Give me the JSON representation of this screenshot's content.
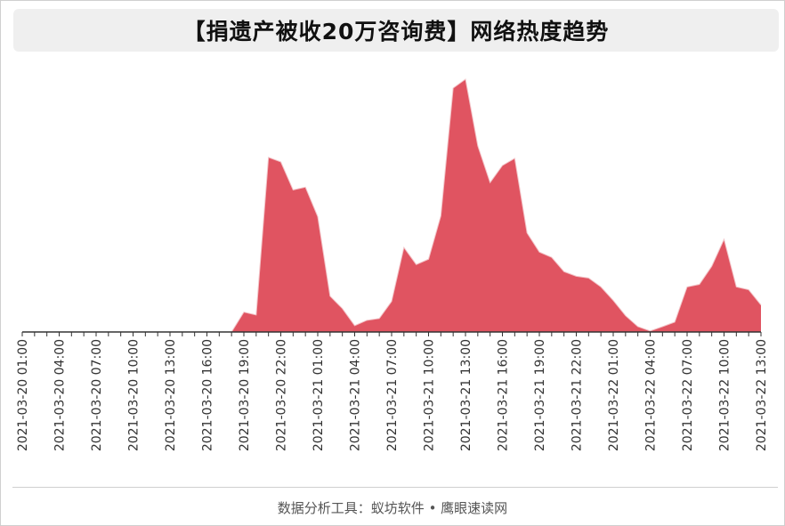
{
  "chart_data": {
    "type": "area",
    "title": "【捐遗产被收20万咨询费】网络热度趋势",
    "xlabel": "",
    "ylabel": "",
    "color": "#e05461",
    "y_axis_visible": false,
    "grid": false,
    "legend": "none",
    "ylim": [
      0,
      100
    ],
    "x_tick_labels": [
      "2021-03-20 01:00",
      "2021-03-20 04:00",
      "2021-03-20 07:00",
      "2021-03-20 10:00",
      "2021-03-20 13:00",
      "2021-03-20 16:00",
      "2021-03-20 19:00",
      "2021-03-20 22:00",
      "2021-03-21 01:00",
      "2021-03-21 04:00",
      "2021-03-21 07:00",
      "2021-03-21 10:00",
      "2021-03-21 13:00",
      "2021-03-21 16:00",
      "2021-03-21 19:00",
      "2021-03-21 22:00",
      "2021-03-22 01:00",
      "2021-03-22 04:00",
      "2021-03-22 07:00",
      "2021-03-22 10:00",
      "2021-03-22 13:00"
    ],
    "series": [
      {
        "values": [
          0,
          0,
          0,
          0,
          0,
          0,
          0,
          0,
          0,
          0,
          0,
          0,
          0,
          0,
          0,
          0,
          0,
          0,
          7.8,
          6.7,
          68.6,
          66.8,
          55.8,
          56.9,
          45.3,
          14.1,
          9.2,
          2.5,
          4.6,
          5.3,
          12,
          33.2,
          26.5,
          28.6,
          45.6,
          95.8,
          99.3,
          73.1,
          58.7,
          65.4,
          68.2,
          38.9,
          31.4,
          29.3,
          23.7,
          21.9,
          21.2,
          17.7,
          12.4,
          6.4,
          2.1,
          0.4,
          2.1,
          3.9,
          17.7,
          18.7,
          25.8,
          36.4,
          17.7,
          16.6,
          10.6
        ]
      }
    ]
  },
  "footer": {
    "text": "数据分析工具：蚁坊软件 • 鹰眼速读网"
  }
}
